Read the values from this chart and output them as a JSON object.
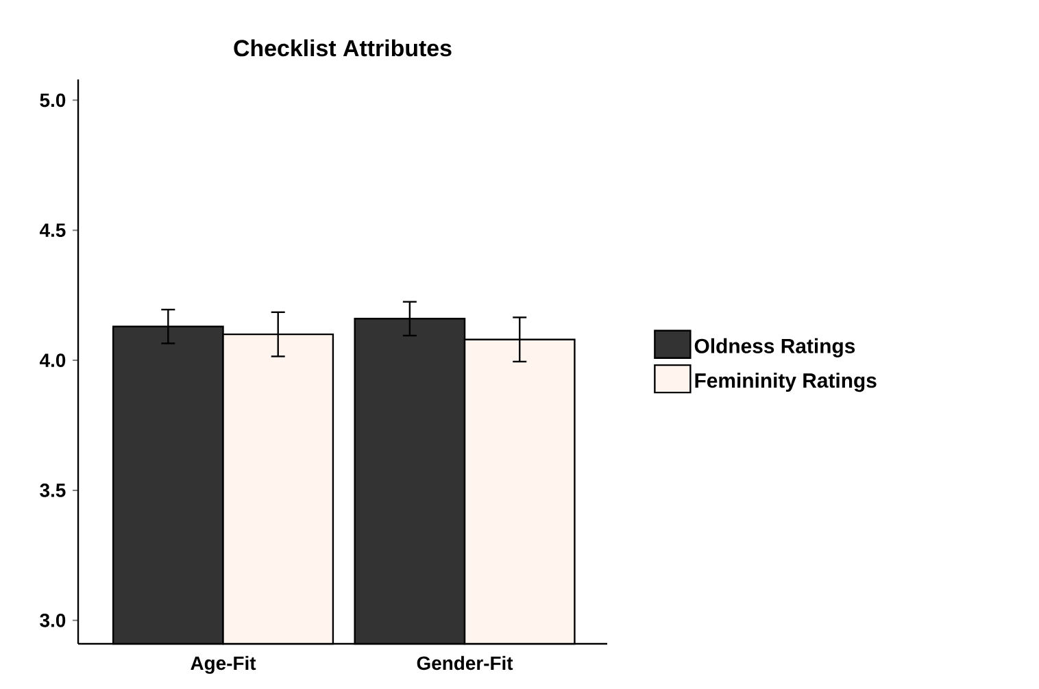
{
  "chart_data": {
    "type": "bar",
    "title": "Checklist Attributes",
    "categories": [
      "Age-Fit",
      "Gender-Fit"
    ],
    "series": [
      {
        "name": "Oldness Ratings",
        "color": "#333333",
        "values": [
          4.13,
          4.16
        ],
        "errors": [
          0.065,
          0.065
        ]
      },
      {
        "name": "Femininity Ratings",
        "color": "#fff5ee",
        "values": [
          4.1,
          4.08
        ],
        "errors": [
          0.085,
          0.085
        ]
      }
    ],
    "ylim": [
      2.91,
      5.08
    ],
    "yticks": [
      {
        "value": 3,
        "label": "3.0"
      },
      {
        "value": 3.5,
        "label": "3.5"
      },
      {
        "value": 4,
        "label": "4.0"
      },
      {
        "value": 4.5,
        "label": "4.5"
      },
      {
        "value": 5,
        "label": "5.0"
      }
    ],
    "grid": false,
    "legend": "right"
  }
}
